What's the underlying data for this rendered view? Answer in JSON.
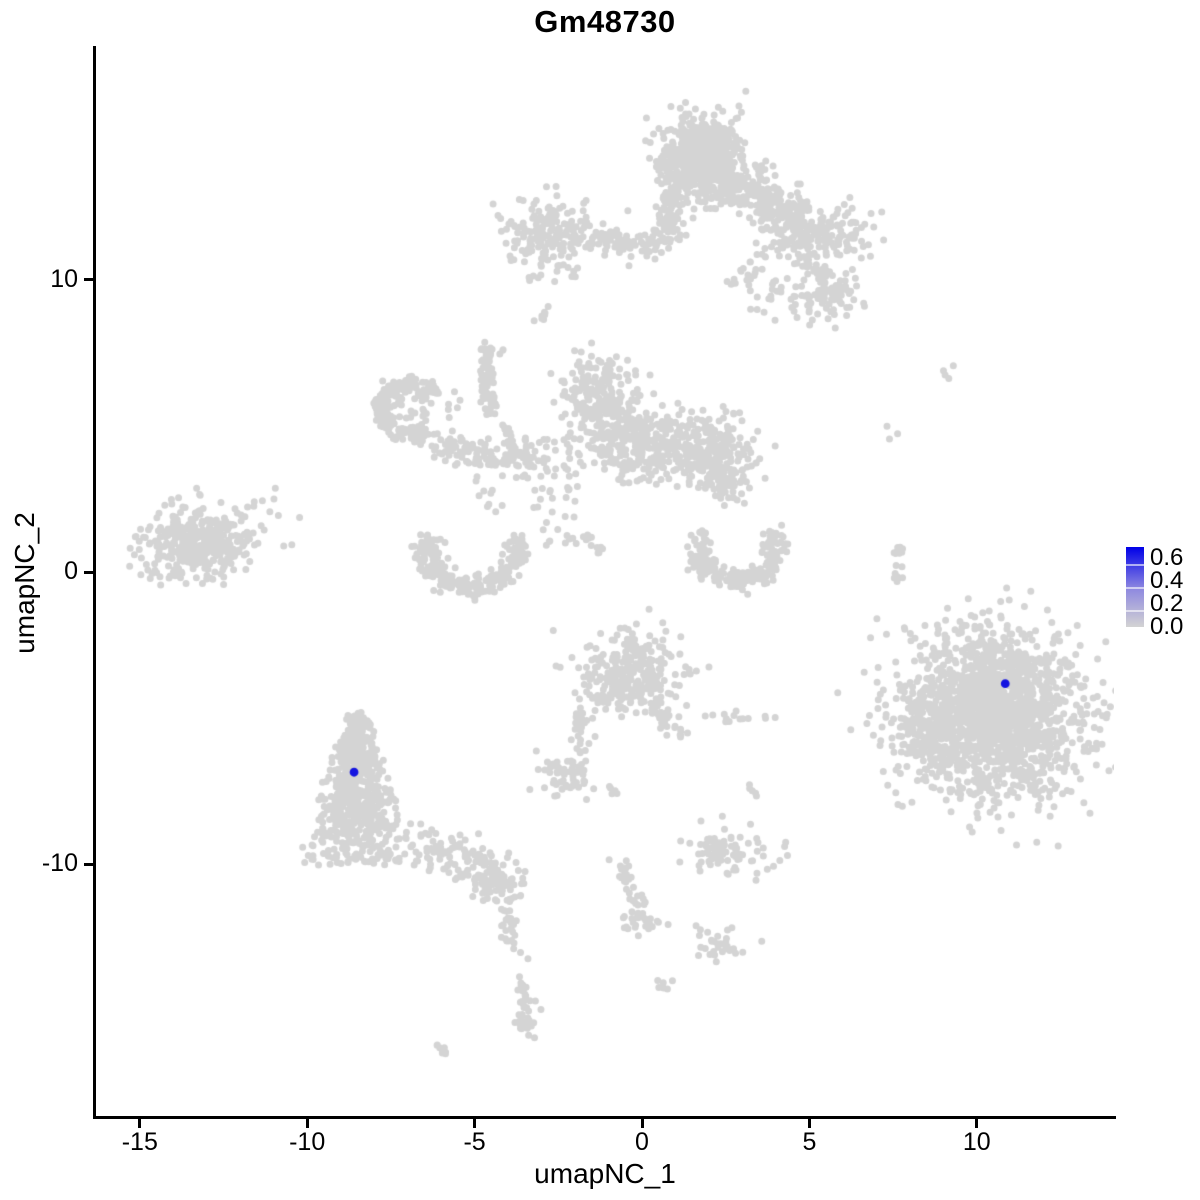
{
  "title": "Gm48730",
  "axes": {
    "x_label": "umapNC_1",
    "y_label": "umapNC_2",
    "x_ticks": [
      -15,
      -10,
      -5,
      0,
      5,
      10
    ],
    "y_ticks": [
      10,
      0,
      -10
    ]
  },
  "legend": {
    "tick_labels": [
      "0.6",
      "0.4",
      "0.2",
      "0.0"
    ],
    "tick_values": [
      0.6,
      0.4,
      0.2,
      0.0
    ],
    "max_value": 0.7,
    "low_color": "#D3D3D3",
    "mid_color": "#8E88E0",
    "high_color": "#0000E8"
  },
  "style": {
    "point_color": "#D4D4D4",
    "highlight_color": "#1414E0",
    "point_radius": 3.5,
    "highlight_radius": 4.4,
    "axis_color": "#000000",
    "background": "#FFFFFF"
  },
  "chart_data": {
    "type": "scatter",
    "title": "Gm48730",
    "xlabel": "umapNC_1",
    "ylabel": "umapNC_2",
    "xlim": [
      -16.3,
      14.1
    ],
    "ylim": [
      -18.7,
      17.9
    ],
    "grid": false,
    "legend_position": "right",
    "color_scale": {
      "label_values": [
        0.0,
        0.2,
        0.4,
        0.6
      ],
      "low": "#D3D3D3",
      "high": "#0000E8",
      "max": 0.7
    },
    "highlighted_points": [
      {
        "x": -8.6,
        "y": -6.85,
        "value": 0.65
      },
      {
        "x": 10.85,
        "y": -3.82,
        "value": 0.65
      }
    ],
    "seed": 20240601,
    "clusters": [
      {
        "name": "top-main",
        "shape": "gauss",
        "cx": 1.8,
        "cy": 14.4,
        "sx": 0.62,
        "sy": 0.6,
        "n": 520
      },
      {
        "name": "top-main-lower",
        "shape": "gauss",
        "cx": 2.1,
        "cy": 13.35,
        "sx": 0.8,
        "sy": 0.45,
        "n": 160
      },
      {
        "name": "top-stem",
        "shape": "strand",
        "x1": 0.95,
        "y1": 13.1,
        "x2": 0.8,
        "y2": 11.5,
        "w": 0.22,
        "n": 80
      },
      {
        "name": "top-left-arm",
        "shape": "gauss",
        "cx": -2.7,
        "cy": 11.5,
        "sx": 0.68,
        "sy": 0.58,
        "n": 180
      },
      {
        "name": "top-arm-bridge",
        "shape": "strand",
        "x1": -1.9,
        "y1": 11.35,
        "x2": 0.7,
        "y2": 11.2,
        "w": 0.24,
        "n": 90
      },
      {
        "name": "below-arm-dots",
        "shape": "uniform",
        "x1": -3.4,
        "y1": 9.9,
        "x2": -2.9,
        "y2": 10.5,
        "n": 5
      },
      {
        "name": "top-right-arm",
        "shape": "strand",
        "x1": 2.9,
        "y1": 13.2,
        "x2": 4.9,
        "y2": 11.7,
        "w": 0.42,
        "n": 240
      },
      {
        "name": "top-right-ext",
        "shape": "gauss",
        "cx": 5.6,
        "cy": 11.45,
        "sx": 0.7,
        "sy": 0.5,
        "n": 130
      },
      {
        "name": "right-arm-scatter",
        "shape": "uniform",
        "x1": 3.2,
        "y1": 8.6,
        "x2": 6.2,
        "y2": 11.3,
        "n": 80
      },
      {
        "name": "right-arm-clump",
        "shape": "gauss",
        "cx": 5.55,
        "cy": 9.6,
        "sx": 0.5,
        "sy": 0.45,
        "n": 70
      },
      {
        "name": "small-blob-upper",
        "shape": "gauss",
        "cx": 2.95,
        "cy": 10.05,
        "sx": 0.22,
        "sy": 0.18,
        "n": 12
      },
      {
        "name": "dash-left",
        "shape": "strand",
        "x1": -3.1,
        "y1": 8.6,
        "x2": -2.8,
        "y2": 9.0,
        "w": 0.07,
        "n": 9
      },
      {
        "name": "mid-head",
        "shape": "gauss",
        "cx": -1.2,
        "cy": 5.95,
        "sx": 0.55,
        "sy": 0.7,
        "n": 220
      },
      {
        "name": "mid-main",
        "shape": "gauss",
        "cx": -0.15,
        "cy": 4.45,
        "sx": 0.8,
        "sy": 0.58,
        "n": 260
      },
      {
        "name": "mid-right-lobe",
        "shape": "gauss",
        "cx": 1.9,
        "cy": 4.15,
        "sx": 0.72,
        "sy": 0.6,
        "n": 240
      },
      {
        "name": "lobe-tail",
        "shape": "strand",
        "x1": 2.35,
        "y1": 3.5,
        "x2": 2.7,
        "y2": 2.6,
        "w": 0.28,
        "n": 35
      },
      {
        "name": "mid-left-scatter",
        "shape": "uniform",
        "x1": -3.5,
        "y1": 3.2,
        "x2": -1.9,
        "y2": 4.7,
        "n": 35
      },
      {
        "name": "ring",
        "shape": "arc",
        "cx": -6.93,
        "cy": 5.55,
        "r": 0.85,
        "a1": 30,
        "a2": 305,
        "th": 0.16,
        "n": 190
      },
      {
        "name": "ring-inner",
        "shape": "gauss",
        "cx": -7.0,
        "cy": 5.4,
        "sx": 0.45,
        "sy": 0.4,
        "n": 25
      },
      {
        "name": "ring-right-dots",
        "shape": "uniform",
        "x1": -5.9,
        "y1": 5.2,
        "x2": -5.4,
        "y2": 6.3,
        "n": 6
      },
      {
        "name": "strand-up",
        "shape": "strand",
        "x1": -4.55,
        "y1": 5.5,
        "x2": -4.62,
        "y2": 7.2,
        "w": 0.13,
        "n": 50
      },
      {
        "name": "strand-top-blob",
        "shape": "gauss",
        "cx": -4.6,
        "cy": 7.45,
        "sx": 0.17,
        "sy": 0.2,
        "n": 22
      },
      {
        "name": "strand-bend",
        "shape": "strand",
        "x1": -4.2,
        "y1": 5.1,
        "x2": -3.7,
        "y2": 4.0,
        "w": 0.12,
        "n": 18
      },
      {
        "name": "chain",
        "shape": "strand",
        "x1": -6.1,
        "y1": 4.35,
        "x2": -3.4,
        "y2": 3.6,
        "w": 0.26,
        "n": 115
      },
      {
        "name": "diag-sparse",
        "shape": "uniform",
        "x1": -3.3,
        "y1": 0.8,
        "x2": -1.9,
        "y2": 3.0,
        "n": 28
      },
      {
        "name": "smile-tip-dots",
        "shape": "uniform",
        "x1": -5.2,
        "y1": 2.0,
        "x2": -4.1,
        "y2": 2.8,
        "n": 8
      },
      {
        "name": "diag-dash",
        "shape": "strand",
        "x1": -1.75,
        "y1": 1.25,
        "x2": -1.25,
        "y2": 0.6,
        "w": 0.09,
        "n": 12
      },
      {
        "name": "smile-crescent",
        "shape": "arc",
        "cx": -5.1,
        "cy": 0.8,
        "r": 1.35,
        "a1": 160,
        "a2": 380,
        "th": 0.2,
        "n": 270
      },
      {
        "name": "right-crescent",
        "shape": "arc",
        "cx": 2.85,
        "cy": 0.85,
        "r": 1.15,
        "a1": 150,
        "a2": 390,
        "th": 0.19,
        "n": 225
      },
      {
        "name": "left-island",
        "shape": "gauss",
        "cx": -13.2,
        "cy": 0.95,
        "sx": 0.8,
        "sy": 0.6,
        "n": 380
      },
      {
        "name": "left-island-satellites",
        "shape": "uniform",
        "x1": -12.2,
        "y1": 0.7,
        "x2": -10.2,
        "y2": 3.0,
        "n": 13
      },
      {
        "name": "triangle-cluster",
        "shape": "tri",
        "cx": -8.5,
        "ytop": -4.9,
        "ybot": -10.0,
        "wtop": 0.3,
        "wbot": 2.05,
        "n": 660
      },
      {
        "name": "triangle-tail",
        "shape": "strand",
        "x1": -6.7,
        "y1": -9.2,
        "x2": -4.6,
        "y2": -10.3,
        "w": 0.33,
        "n": 90
      },
      {
        "name": "tail-blob",
        "shape": "gauss",
        "cx": -4.35,
        "cy": -10.7,
        "sx": 0.4,
        "sy": 0.4,
        "n": 80
      },
      {
        "name": "tail-strand-2",
        "shape": "strand",
        "x1": -4.15,
        "y1": -11.5,
        "x2": -3.75,
        "y2": -13.1,
        "w": 0.12,
        "n": 22
      },
      {
        "name": "tail-strand-3",
        "shape": "strand",
        "x1": -3.65,
        "y1": -13.5,
        "x2": -3.45,
        "y2": -14.9,
        "w": 0.1,
        "n": 16
      },
      {
        "name": "tail-end-blob",
        "shape": "gauss",
        "cx": -3.45,
        "cy": -15.3,
        "sx": 0.17,
        "sy": 0.32,
        "n": 28
      },
      {
        "name": "bottom-dash",
        "shape": "strand",
        "x1": -6.2,
        "y1": -16.1,
        "x2": -5.85,
        "y2": -16.5,
        "w": 0.07,
        "n": 9
      },
      {
        "name": "island-i",
        "shape": "gauss",
        "cx": -0.4,
        "cy": -3.5,
        "sx": 0.75,
        "sy": 0.72,
        "n": 300
      },
      {
        "name": "island-i-right-tail",
        "shape": "strand",
        "x1": 0.3,
        "y1": -4.3,
        "x2": 1.05,
        "y2": -5.6,
        "w": 0.15,
        "n": 30
      },
      {
        "name": "island-i-left-tail",
        "shape": "strand",
        "x1": -1.75,
        "y1": -4.75,
        "x2": -1.9,
        "y2": -6.15,
        "w": 0.12,
        "n": 25
      },
      {
        "name": "blob-j",
        "shape": "gauss",
        "cx": -2.45,
        "cy": -7.0,
        "sx": 0.55,
        "sy": 0.35,
        "n": 55
      },
      {
        "name": "blob-j-dots",
        "shape": "uniform",
        "x1": -2.75,
        "y1": -7.75,
        "x2": -2.5,
        "y2": -7.5,
        "n": 3
      },
      {
        "name": "tiny-blob",
        "shape": "gauss",
        "cx": -0.9,
        "cy": -7.45,
        "sx": 0.1,
        "sy": 0.18,
        "n": 5
      },
      {
        "name": "blob-k",
        "shape": "gauss",
        "cx": 2.9,
        "cy": -5.05,
        "sx": 0.5,
        "sy": 0.15,
        "n": 14
      },
      {
        "name": "dots-l",
        "shape": "uniform",
        "x1": 3.2,
        "y1": -7.8,
        "x2": 3.45,
        "y2": -7.25,
        "n": 5
      },
      {
        "name": "dot-single-1",
        "shape": "uniform",
        "x1": 2.35,
        "y1": -8.45,
        "x2": 2.45,
        "y2": -8.35,
        "n": 1
      },
      {
        "name": "blob-m",
        "shape": "gauss",
        "cx": 2.45,
        "cy": -9.55,
        "sx": 0.72,
        "sy": 0.38,
        "n": 80
      },
      {
        "name": "strand-n",
        "shape": "strand",
        "x1": -0.75,
        "y1": -9.9,
        "x2": 0.05,
        "y2": -11.6,
        "w": 0.12,
        "n": 30
      },
      {
        "name": "strand-n-blob",
        "shape": "gauss",
        "cx": 0.0,
        "cy": -12.05,
        "sx": 0.28,
        "sy": 0.25,
        "n": 28
      },
      {
        "name": "dot-single-2",
        "shape": "uniform",
        "x1": 1.6,
        "y1": -12.25,
        "x2": 1.75,
        "y2": -12.1,
        "n": 1
      },
      {
        "name": "blob-o",
        "shape": "gauss",
        "cx": 2.36,
        "cy": -12.7,
        "sx": 0.4,
        "sy": 0.33,
        "n": 30
      },
      {
        "name": "blob-p",
        "shape": "gauss",
        "cx": 0.63,
        "cy": -14.1,
        "sx": 0.12,
        "sy": 0.15,
        "n": 6
      },
      {
        "name": "left-chain-mid",
        "shape": "strand",
        "x1": -4.1,
        "y1": -11.6,
        "x2": -3.95,
        "y2": -12.0,
        "w": 0.08,
        "n": 6
      },
      {
        "name": "big-right-island",
        "shape": "gauss",
        "cx": 10.5,
        "cy": -4.75,
        "sx": 1.35,
        "sy": 1.4,
        "n": 1750
      },
      {
        "name": "big-right-left-lobe",
        "shape": "gauss",
        "cx": 8.55,
        "cy": -5.3,
        "sx": 0.5,
        "sy": 0.7,
        "n": 110
      },
      {
        "name": "strand-r",
        "shape": "strand",
        "x1": 7.6,
        "y1": 1.0,
        "x2": 7.78,
        "y2": -0.7,
        "w": 0.12,
        "n": 16
      },
      {
        "name": "dot-r2",
        "shape": "uniform",
        "x1": 7.7,
        "y1": -2.0,
        "x2": 7.85,
        "y2": -1.85,
        "n": 1
      },
      {
        "name": "dots-s",
        "shape": "uniform",
        "x1": 9.0,
        "y1": 6.6,
        "x2": 9.7,
        "y2": 7.1,
        "n": 4
      },
      {
        "name": "dots-t",
        "shape": "uniform",
        "x1": 7.3,
        "y1": 4.4,
        "x2": 7.7,
        "y2": 5.0,
        "n": 3
      }
    ]
  }
}
